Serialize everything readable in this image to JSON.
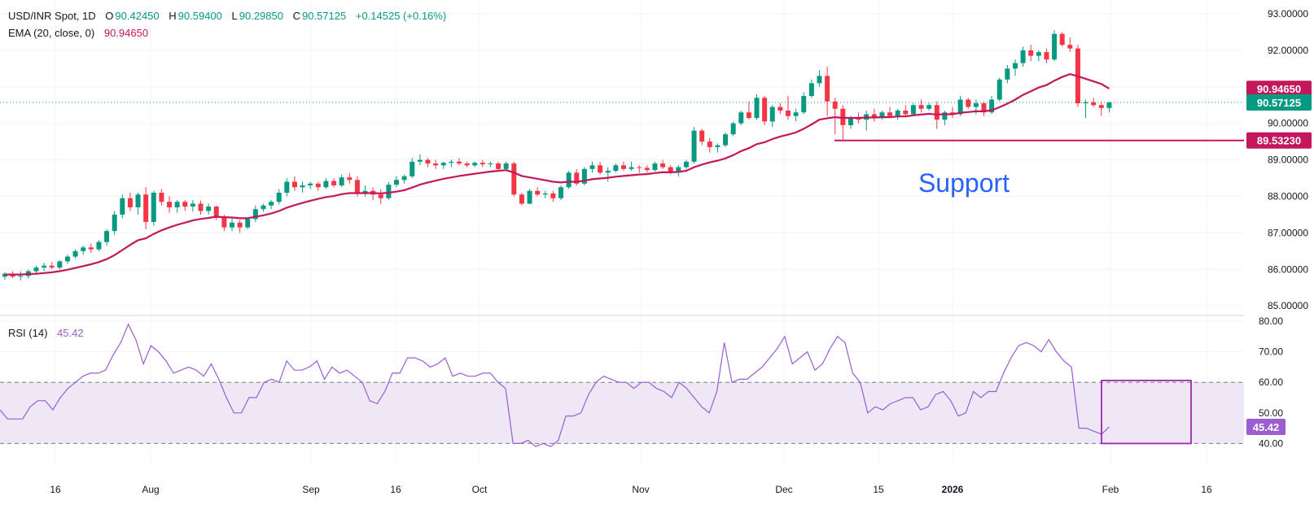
{
  "header": {
    "symbol": "USD/INR Spot, 1D",
    "open_label": "O",
    "open": "90.42450",
    "high_label": "H",
    "high": "90.59400",
    "low_label": "L",
    "low": "90.29850",
    "close_label": "C",
    "close": "90.57125",
    "change": "+0.14525 (+0.16%)"
  },
  "ema_legend": {
    "label": "EMA (20, close, 0)",
    "value": "90.94650"
  },
  "rsi_legend": {
    "label": "RSI (14)",
    "value": "45.42"
  },
  "annotation": {
    "text": "Support"
  },
  "badges": {
    "ema": "90.94650",
    "price": "90.57125",
    "support": "89.53230",
    "rsi": "45.42"
  },
  "colors": {
    "up": "#089981",
    "down": "#f23645",
    "ema": "#c2185b",
    "rsi": "#9c5dd1",
    "rsi_band": "#ede7f6",
    "support_text": "#2962ff",
    "box": "#9c27b0",
    "price_line": "#089981"
  },
  "chart_data": [
    {
      "type": "candlestick",
      "title": "USD/INR Spot, 1D",
      "y_ticks": [
        "93.00000",
        "92.00000",
        "91.00000",
        "90.00000",
        "89.00000",
        "88.00000",
        "87.00000",
        "86.00000",
        "85.00000"
      ],
      "ylim": [
        85.0,
        93.0
      ],
      "x_ticks": [
        "16",
        "Aug",
        "Sep",
        "16",
        "Oct",
        "Nov",
        "Dec",
        "15",
        "2026",
        "Feb",
        "16"
      ],
      "x_ticks_bold": [
        "2026"
      ],
      "support_level": 89.5323,
      "last_close": 90.57125,
      "ema_last": 90.9465,
      "candles_ohlc": [
        [
          85.8,
          85.92,
          85.72,
          85.88
        ],
        [
          85.88,
          85.95,
          85.76,
          85.8
        ],
        [
          85.8,
          85.95,
          85.7,
          85.82
        ],
        [
          85.82,
          86.0,
          85.75,
          85.95
        ],
        [
          85.95,
          86.1,
          85.85,
          86.05
        ],
        [
          86.05,
          86.18,
          85.95,
          86.1
        ],
        [
          86.1,
          86.2,
          86.0,
          86.05
        ],
        [
          86.05,
          86.25,
          86.0,
          86.22
        ],
        [
          86.22,
          86.4,
          86.15,
          86.35
        ],
        [
          86.35,
          86.55,
          86.3,
          86.5
        ],
        [
          86.5,
          86.65,
          86.4,
          86.6
        ],
        [
          86.6,
          86.7,
          86.45,
          86.55
        ],
        [
          86.55,
          86.8,
          86.5,
          86.75
        ],
        [
          86.75,
          87.1,
          86.65,
          87.05
        ],
        [
          87.05,
          87.6,
          86.95,
          87.5
        ],
        [
          87.5,
          88.05,
          87.4,
          87.95
        ],
        [
          87.95,
          88.1,
          87.6,
          87.7
        ],
        [
          87.7,
          88.1,
          87.5,
          88.05
        ],
        [
          88.05,
          88.25,
          87.1,
          87.3
        ],
        [
          87.3,
          88.15,
          87.2,
          88.1
        ],
        [
          88.1,
          88.2,
          87.75,
          87.85
        ],
        [
          87.85,
          88.0,
          87.55,
          87.7
        ],
        [
          87.7,
          87.9,
          87.55,
          87.85
        ],
        [
          87.85,
          87.9,
          87.6,
          87.72
        ],
        [
          87.72,
          87.9,
          87.58,
          87.8
        ],
        [
          87.8,
          87.88,
          87.5,
          87.6
        ],
        [
          87.6,
          87.8,
          87.5,
          87.72
        ],
        [
          87.72,
          87.75,
          87.35,
          87.45
        ],
        [
          87.45,
          87.5,
          87.05,
          87.15
        ],
        [
          87.15,
          87.4,
          87.05,
          87.28
        ],
        [
          87.28,
          87.35,
          87.0,
          87.15
        ],
        [
          87.15,
          87.4,
          87.1,
          87.38
        ],
        [
          87.38,
          87.75,
          87.3,
          87.65
        ],
        [
          87.65,
          87.8,
          87.58,
          87.75
        ],
        [
          87.75,
          87.9,
          87.65,
          87.85
        ],
        [
          87.85,
          88.2,
          87.78,
          88.1
        ],
        [
          88.1,
          88.5,
          88.0,
          88.4
        ],
        [
          88.4,
          88.55,
          88.15,
          88.25
        ],
        [
          88.25,
          88.4,
          88.1,
          88.3
        ],
        [
          88.3,
          88.4,
          88.2,
          88.35
        ],
        [
          88.35,
          88.4,
          88.15,
          88.25
        ],
        [
          88.25,
          88.5,
          88.2,
          88.42
        ],
        [
          88.42,
          88.5,
          88.25,
          88.3
        ],
        [
          88.3,
          88.6,
          88.25,
          88.52
        ],
        [
          88.52,
          88.65,
          88.35,
          88.45
        ],
        [
          88.45,
          88.55,
          88.0,
          88.1
        ],
        [
          88.1,
          88.3,
          88.0,
          88.15
        ],
        [
          88.15,
          88.25,
          87.9,
          88.05
        ],
        [
          88.05,
          88.2,
          87.8,
          87.95
        ],
        [
          87.95,
          88.4,
          87.9,
          88.32
        ],
        [
          88.32,
          88.55,
          88.25,
          88.45
        ],
        [
          88.45,
          88.6,
          88.35,
          88.55
        ],
        [
          88.55,
          89.05,
          88.5,
          88.95
        ],
        [
          88.95,
          89.15,
          88.85,
          89.0
        ],
        [
          89.0,
          89.05,
          88.8,
          88.9
        ],
        [
          88.9,
          89.0,
          88.75,
          88.85
        ],
        [
          88.85,
          88.95,
          88.75,
          88.92
        ],
        [
          88.92,
          89.0,
          88.8,
          88.95
        ],
        [
          88.95,
          89.05,
          88.85,
          88.9
        ],
        [
          88.9,
          88.95,
          88.8,
          88.85
        ],
        [
          88.85,
          88.95,
          88.8,
          88.92
        ],
        [
          88.92,
          89.0,
          88.8,
          88.88
        ],
        [
          88.88,
          88.95,
          88.8,
          88.9
        ],
        [
          88.9,
          88.95,
          88.7,
          88.75
        ],
        [
          88.75,
          88.95,
          88.7,
          88.9
        ],
        [
          88.9,
          88.95,
          88.0,
          88.05
        ],
        [
          88.05,
          88.1,
          87.75,
          87.8
        ],
        [
          87.8,
          88.2,
          87.78,
          88.15
        ],
        [
          88.15,
          88.25,
          88.0,
          88.05
        ],
        [
          88.05,
          88.15,
          87.95,
          88.08
        ],
        [
          88.08,
          88.15,
          87.85,
          87.95
        ],
        [
          87.95,
          88.3,
          87.9,
          88.25
        ],
        [
          88.25,
          88.7,
          88.2,
          88.65
        ],
        [
          88.65,
          88.75,
          88.3,
          88.35
        ],
        [
          88.35,
          88.8,
          88.3,
          88.75
        ],
        [
          88.75,
          88.95,
          88.65,
          88.85
        ],
        [
          88.85,
          88.95,
          88.6,
          88.65
        ],
        [
          88.65,
          88.8,
          88.4,
          88.7
        ],
        [
          88.7,
          88.9,
          88.65,
          88.85
        ],
        [
          88.85,
          88.95,
          88.7,
          88.75
        ],
        [
          88.75,
          88.95,
          88.7,
          88.8
        ],
        [
          88.8,
          88.85,
          88.65,
          88.78
        ],
        [
          88.78,
          88.85,
          88.65,
          88.72
        ],
        [
          88.72,
          88.95,
          88.68,
          88.9
        ],
        [
          88.9,
          89.0,
          88.75,
          88.8
        ],
        [
          88.8,
          88.85,
          88.6,
          88.65
        ],
        [
          88.65,
          88.85,
          88.55,
          88.8
        ],
        [
          88.8,
          89.0,
          88.75,
          88.95
        ],
        [
          88.95,
          89.9,
          88.9,
          89.8
        ],
        [
          89.8,
          89.85,
          89.4,
          89.5
        ],
        [
          89.5,
          89.6,
          89.2,
          89.35
        ],
        [
          89.35,
          89.45,
          89.2,
          89.4
        ],
        [
          89.4,
          89.75,
          89.35,
          89.7
        ],
        [
          89.7,
          90.05,
          89.65,
          90.0
        ],
        [
          90.0,
          90.35,
          89.95,
          90.3
        ],
        [
          90.3,
          90.6,
          90.1,
          90.15
        ],
        [
          90.15,
          90.8,
          90.1,
          90.7
        ],
        [
          90.7,
          90.75,
          89.95,
          90.05
        ],
        [
          90.05,
          90.5,
          89.9,
          90.45
        ],
        [
          90.45,
          90.55,
          90.25,
          90.35
        ],
        [
          90.35,
          90.75,
          90.1,
          90.2
        ],
        [
          90.2,
          90.4,
          90.05,
          90.3
        ],
        [
          90.3,
          90.85,
          90.25,
          90.75
        ],
        [
          90.75,
          91.2,
          90.7,
          91.1
        ],
        [
          91.1,
          91.45,
          91.0,
          91.3
        ],
        [
          91.3,
          91.55,
          90.2,
          90.6
        ],
        [
          90.6,
          90.7,
          89.7,
          90.4
        ],
        [
          90.4,
          90.5,
          89.53,
          89.95
        ],
        [
          89.95,
          90.2,
          89.85,
          90.15
        ],
        [
          90.15,
          90.3,
          90.0,
          90.1
        ],
        [
          90.1,
          90.35,
          89.8,
          90.25
        ],
        [
          90.25,
          90.4,
          90.05,
          90.15
        ],
        [
          90.15,
          90.35,
          90.1,
          90.3
        ],
        [
          90.3,
          90.45,
          90.15,
          90.2
        ],
        [
          90.2,
          90.4,
          90.1,
          90.35
        ],
        [
          90.35,
          90.5,
          90.2,
          90.25
        ],
        [
          90.25,
          90.55,
          90.2,
          90.5
        ],
        [
          90.5,
          90.65,
          90.3,
          90.4
        ],
        [
          90.4,
          90.55,
          90.35,
          90.5
        ],
        [
          90.5,
          90.6,
          89.85,
          90.1
        ],
        [
          90.1,
          90.35,
          89.95,
          90.3
        ],
        [
          90.3,
          90.45,
          90.15,
          90.25
        ],
        [
          90.25,
          90.75,
          90.2,
          90.65
        ],
        [
          90.65,
          90.7,
          90.4,
          90.45
        ],
        [
          90.45,
          90.65,
          90.25,
          90.55
        ],
        [
          90.55,
          90.6,
          90.2,
          90.3
        ],
        [
          90.3,
          90.75,
          90.25,
          90.65
        ],
        [
          90.65,
          91.25,
          90.6,
          91.2
        ],
        [
          91.2,
          91.6,
          91.1,
          91.5
        ],
        [
          91.5,
          91.75,
          91.3,
          91.65
        ],
        [
          91.65,
          92.1,
          91.55,
          92.0
        ],
        [
          92.0,
          92.15,
          91.7,
          91.85
        ],
        [
          91.85,
          92.0,
          91.7,
          91.95
        ],
        [
          91.95,
          92.05,
          91.65,
          91.75
        ],
        [
          91.75,
          92.55,
          91.7,
          92.45
        ],
        [
          92.45,
          92.5,
          92.1,
          92.15
        ],
        [
          92.15,
          92.35,
          91.95,
          92.05
        ],
        [
          92.05,
          92.15,
          90.45,
          90.55
        ],
        [
          90.55,
          90.65,
          90.15,
          90.58
        ],
        [
          90.58,
          90.7,
          90.45,
          90.5
        ],
        [
          90.5,
          90.6,
          90.2,
          90.42
        ],
        [
          90.42,
          90.594,
          90.2985,
          90.57125
        ]
      ],
      "ema": [
        85.86,
        85.86,
        85.86,
        85.87,
        85.88,
        85.9,
        85.92,
        85.95,
        85.99,
        86.04,
        86.09,
        86.14,
        86.2,
        86.28,
        86.39,
        86.53,
        86.67,
        86.8,
        86.85,
        86.97,
        87.07,
        87.15,
        87.22,
        87.28,
        87.34,
        87.38,
        87.41,
        87.44,
        87.43,
        87.42,
        87.4,
        87.4,
        87.44,
        87.48,
        87.53,
        87.6,
        87.69,
        87.76,
        87.82,
        87.88,
        87.93,
        87.98,
        88.01,
        88.06,
        88.09,
        88.09,
        88.09,
        88.09,
        88.08,
        88.1,
        88.13,
        88.17,
        88.24,
        88.32,
        88.38,
        88.43,
        88.48,
        88.52,
        88.56,
        88.59,
        88.62,
        88.65,
        88.68,
        88.7,
        88.72,
        88.65,
        88.56,
        88.52,
        88.48,
        88.44,
        88.4,
        88.38,
        88.4,
        88.4,
        88.43,
        88.47,
        88.49,
        88.51,
        88.54,
        88.56,
        88.58,
        88.6,
        88.61,
        88.64,
        88.66,
        88.66,
        88.67,
        88.7,
        88.8,
        88.87,
        88.93,
        88.98,
        89.04,
        89.13,
        89.24,
        89.32,
        89.43,
        89.48,
        89.57,
        89.64,
        89.69,
        89.75,
        89.85,
        89.97,
        90.1,
        90.14,
        90.17,
        90.15,
        90.15,
        90.15,
        90.16,
        90.16,
        90.17,
        90.17,
        90.19,
        90.19,
        90.22,
        90.24,
        90.26,
        90.24,
        90.25,
        90.25,
        90.29,
        90.31,
        90.33,
        90.33,
        90.36,
        90.44,
        90.54,
        90.65,
        90.78,
        90.88,
        90.98,
        91.05,
        91.17,
        91.27,
        91.35,
        91.29,
        91.22,
        91.15,
        91.08,
        90.95
      ]
    },
    {
      "type": "line",
      "title": "RSI (14)",
      "y_ticks": [
        "80.00",
        "70.00",
        "60.00",
        "50.00",
        "40.00"
      ],
      "ylim": [
        38,
        82
      ],
      "band": [
        40,
        60
      ],
      "last_value": 45.42,
      "values": [
        51,
        48,
        48,
        48,
        52,
        54,
        54,
        51,
        55,
        58,
        60,
        62,
        63,
        63,
        64,
        69,
        73,
        79,
        74,
        66,
        72,
        70,
        67,
        63,
        64,
        65,
        64,
        62,
        66,
        61,
        55,
        50,
        50,
        55,
        55,
        60,
        61,
        60,
        67,
        64,
        64,
        65,
        67,
        61,
        65,
        63,
        64,
        62,
        60,
        54,
        53,
        57,
        63,
        63,
        68,
        68,
        67,
        65,
        66,
        68,
        62,
        63,
        62,
        62,
        63,
        63,
        60,
        58,
        40,
        40,
        41,
        39,
        40,
        39,
        41,
        49,
        49,
        50,
        56,
        60,
        62,
        61,
        60,
        60,
        58,
        60,
        60,
        58,
        57,
        55,
        60,
        58,
        55,
        52,
        50,
        57,
        73,
        60,
        61,
        61,
        63,
        65,
        68,
        71,
        75,
        66,
        68,
        70,
        64,
        66,
        71,
        75,
        73,
        63,
        60,
        50,
        52,
        51,
        53,
        54,
        55,
        55,
        51,
        52,
        56,
        57,
        54,
        49,
        50,
        57,
        55,
        57,
        57,
        63,
        68,
        72,
        73,
        72,
        70,
        74,
        70,
        67,
        65,
        45,
        45,
        44,
        43,
        45.42
      ]
    }
  ]
}
